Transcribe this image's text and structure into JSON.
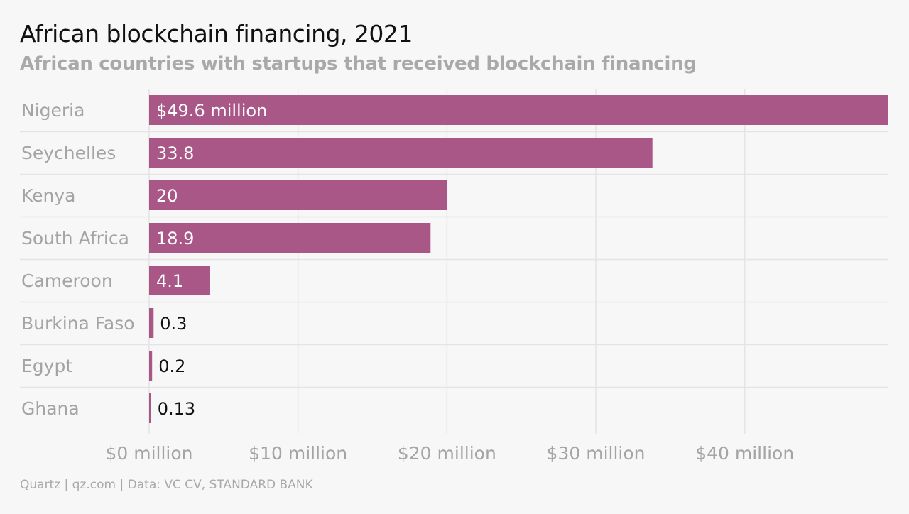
{
  "chart_data": {
    "type": "bar",
    "orientation": "horizontal",
    "title": "African blockchain financing, 2021",
    "subtitle": "African countries with startups that received blockchain financing",
    "categories": [
      "Nigeria",
      "Seychelles",
      "Kenya",
      "South Africa",
      "Cameroon",
      "Burkina Faso",
      "Egypt",
      "Ghana"
    ],
    "values": [
      49.6,
      33.8,
      20,
      18.9,
      4.1,
      0.3,
      0.2,
      0.13
    ],
    "value_labels": [
      "$49.6 million",
      "33.8",
      "20",
      "18.9",
      "4.1",
      "0.3",
      "0.2",
      "0.13"
    ],
    "x_ticks": [
      0,
      10,
      20,
      30,
      40
    ],
    "x_tick_labels": [
      "$0 million",
      "$10 million",
      "$20 million",
      "$30 million",
      "$40 million"
    ],
    "xlim": [
      0,
      49.6
    ],
    "xlabel": "",
    "ylabel": "",
    "grid": true,
    "colors": {
      "bar": "#a85787",
      "grid": "#e4e4e4",
      "background": "#f7f7f7"
    }
  },
  "footer": "Quartz | qz.com | Data: VC CV, STANDARD BANK"
}
